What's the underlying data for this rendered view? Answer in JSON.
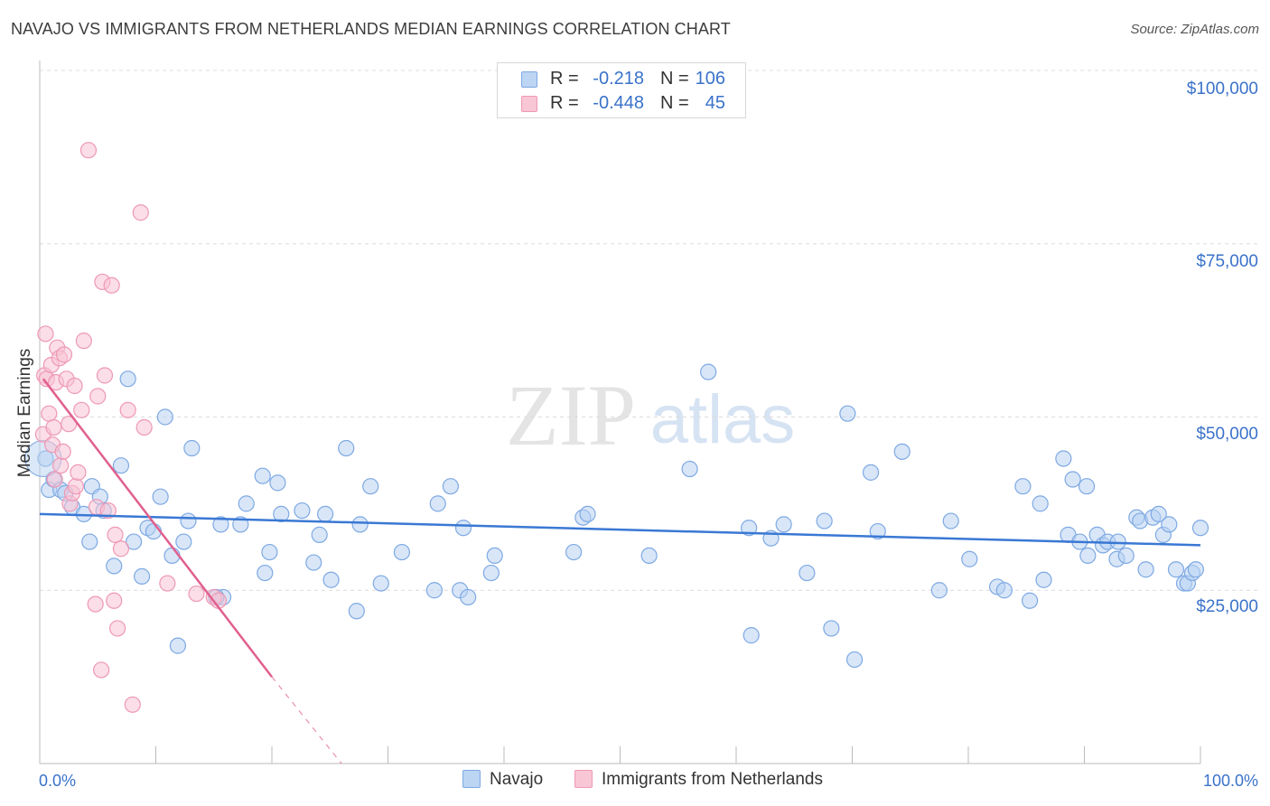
{
  "title": "NAVAJO VS IMMIGRANTS FROM NETHERLANDS MEDIAN EARNINGS CORRELATION CHART",
  "source": "Source: ZipAtlas.com",
  "watermark": {
    "zip": "ZIP",
    "atlas": "atlas"
  },
  "legend": {
    "rows": [
      {
        "r_label": "R =",
        "r_value": "-0.218",
        "n_label": "N =",
        "n_value": "106",
        "color": "#a8c8f0"
      },
      {
        "r_label": "R =",
        "r_value": "-0.448",
        "n_label": "N =",
        "n_value": "45",
        "color": "#f6b8cb"
      }
    ]
  },
  "bottom_legend": {
    "navajo": "Navajo",
    "netherlands": "Immigrants from Netherlands"
  },
  "chart_data": {
    "type": "scatter",
    "title": "NAVAJO VS IMMIGRANTS FROM NETHERLANDS MEDIAN EARNINGS CORRELATION CHART",
    "xlabel": "",
    "ylabel": "Median Earnings",
    "x_tick_labels": [
      "0.0%",
      "100.0%"
    ],
    "y_tick_labels": [
      "$25,000",
      "$50,000",
      "$75,000",
      "$100,000"
    ],
    "xlim": [
      0,
      100
    ],
    "ylim": [
      0,
      100000
    ],
    "grid": true,
    "colors": {
      "navajo": "#3a78d4",
      "navajo_fill": "#b8d2f2",
      "netherlands": "#e0608f",
      "netherlands_fill": "#f7c2d4",
      "tick_text": "#3a72c9"
    },
    "series": [
      {
        "name": "Navajo",
        "trend": {
          "x0": 0,
          "y0": 36000,
          "x1": 100,
          "y1": 31500
        },
        "points": [
          [
            0.5,
            44000
          ],
          [
            0.8,
            39500
          ],
          [
            1.2,
            41000
          ],
          [
            1.8,
            39500
          ],
          [
            2.2,
            39000
          ],
          [
            2.8,
            37000
          ],
          [
            3.8,
            36000
          ],
          [
            4.3,
            32000
          ],
          [
            4.5,
            40000
          ],
          [
            5.2,
            38500
          ],
          [
            5.5,
            36500
          ],
          [
            6.4,
            28500
          ],
          [
            7.0,
            43000
          ],
          [
            7.6,
            55500
          ],
          [
            8.1,
            32000
          ],
          [
            8.8,
            27000
          ],
          [
            9.3,
            34000
          ],
          [
            9.8,
            33500
          ],
          [
            10.4,
            38500
          ],
          [
            10.8,
            50000
          ],
          [
            11.4,
            30000
          ],
          [
            11.9,
            17000
          ],
          [
            12.4,
            32000
          ],
          [
            12.8,
            35000
          ],
          [
            13.1,
            45500
          ],
          [
            15.8,
            24000
          ],
          [
            15.2,
            24000
          ],
          [
            15.6,
            34500
          ],
          [
            17.3,
            34500
          ],
          [
            17.8,
            37500
          ],
          [
            19.2,
            41500
          ],
          [
            19.4,
            27500
          ],
          [
            19.8,
            30500
          ],
          [
            20.5,
            40500
          ],
          [
            20.8,
            36000
          ],
          [
            22.6,
            36500
          ],
          [
            23.6,
            29000
          ],
          [
            24.1,
            33000
          ],
          [
            24.6,
            36000
          ],
          [
            25.1,
            26500
          ],
          [
            26.4,
            45500
          ],
          [
            27.3,
            22000
          ],
          [
            27.6,
            34500
          ],
          [
            28.5,
            40000
          ],
          [
            29.4,
            26000
          ],
          [
            31.2,
            30500
          ],
          [
            34.0,
            25000
          ],
          [
            34.3,
            37500
          ],
          [
            35.4,
            40000
          ],
          [
            36.2,
            25000
          ],
          [
            36.5,
            34000
          ],
          [
            36.9,
            24000
          ],
          [
            38.9,
            27500
          ],
          [
            39.2,
            30000
          ],
          [
            46.0,
            30500
          ],
          [
            46.8,
            35500
          ],
          [
            47.2,
            36000
          ],
          [
            52.5,
            30000
          ],
          [
            56.0,
            42500
          ],
          [
            57.6,
            56500
          ],
          [
            61.1,
            34000
          ],
          [
            61.3,
            18500
          ],
          [
            63.0,
            32500
          ],
          [
            64.1,
            34500
          ],
          [
            66.1,
            27500
          ],
          [
            67.6,
            35000
          ],
          [
            68.2,
            19500
          ],
          [
            69.6,
            50500
          ],
          [
            70.2,
            15000
          ],
          [
            71.6,
            42000
          ],
          [
            72.2,
            33500
          ],
          [
            74.3,
            45000
          ],
          [
            77.5,
            25000
          ],
          [
            78.5,
            35000
          ],
          [
            80.1,
            29500
          ],
          [
            82.5,
            25500
          ],
          [
            83.1,
            25000
          ],
          [
            84.7,
            40000
          ],
          [
            85.3,
            23500
          ],
          [
            86.2,
            37500
          ],
          [
            86.5,
            26500
          ],
          [
            88.2,
            44000
          ],
          [
            88.6,
            33000
          ],
          [
            89.0,
            41000
          ],
          [
            89.6,
            32000
          ],
          [
            90.2,
            40000
          ],
          [
            90.3,
            30000
          ],
          [
            91.1,
            33000
          ],
          [
            91.6,
            31500
          ],
          [
            92.0,
            32000
          ],
          [
            92.8,
            29500
          ],
          [
            92.9,
            32000
          ],
          [
            93.6,
            30000
          ],
          [
            94.5,
            35500
          ],
          [
            94.8,
            35000
          ],
          [
            95.3,
            28000
          ],
          [
            95.9,
            35500
          ],
          [
            96.4,
            36000
          ],
          [
            96.8,
            33000
          ],
          [
            97.3,
            34500
          ],
          [
            97.9,
            28000
          ],
          [
            98.6,
            26000
          ],
          [
            98.9,
            26000
          ],
          [
            99.3,
            27500
          ],
          [
            99.6,
            28000
          ],
          [
            100.0,
            34000
          ]
        ]
      },
      {
        "name": "Immigrants from Netherlands",
        "trend": {
          "x0": 0.3,
          "y0": 55500,
          "x1": 20.0,
          "y1": 12500,
          "dash_to_x": 26.0,
          "dash_to_y": -700
        },
        "points": [
          [
            0.3,
            47500
          ],
          [
            0.4,
            56000
          ],
          [
            0.5,
            62000
          ],
          [
            0.6,
            55500
          ],
          [
            0.8,
            50500
          ],
          [
            1.0,
            57500
          ],
          [
            1.1,
            46000
          ],
          [
            1.2,
            48500
          ],
          [
            1.3,
            41000
          ],
          [
            1.4,
            55000
          ],
          [
            1.5,
            60000
          ],
          [
            1.7,
            58500
          ],
          [
            1.8,
            43000
          ],
          [
            2.0,
            45000
          ],
          [
            2.1,
            59000
          ],
          [
            2.3,
            55500
          ],
          [
            2.5,
            49000
          ],
          [
            2.6,
            37500
          ],
          [
            2.8,
            39000
          ],
          [
            3.0,
            54500
          ],
          [
            3.1,
            40000
          ],
          [
            3.3,
            42000
          ],
          [
            3.6,
            51000
          ],
          [
            3.8,
            61000
          ],
          [
            4.2,
            88500
          ],
          [
            4.8,
            23000
          ],
          [
            4.9,
            37000
          ],
          [
            5.0,
            53000
          ],
          [
            5.3,
            13500
          ],
          [
            5.4,
            69500
          ],
          [
            5.6,
            56000
          ],
          [
            5.9,
            36500
          ],
          [
            6.2,
            69000
          ],
          [
            6.4,
            23500
          ],
          [
            6.5,
            33000
          ],
          [
            6.7,
            19500
          ],
          [
            7.0,
            31000
          ],
          [
            7.6,
            51000
          ],
          [
            8.0,
            8500
          ],
          [
            8.7,
            79500
          ],
          [
            9.0,
            48500
          ],
          [
            11.0,
            26000
          ],
          [
            13.5,
            24500
          ],
          [
            15.0,
            24000
          ],
          [
            15.4,
            23500
          ]
        ]
      }
    ]
  }
}
